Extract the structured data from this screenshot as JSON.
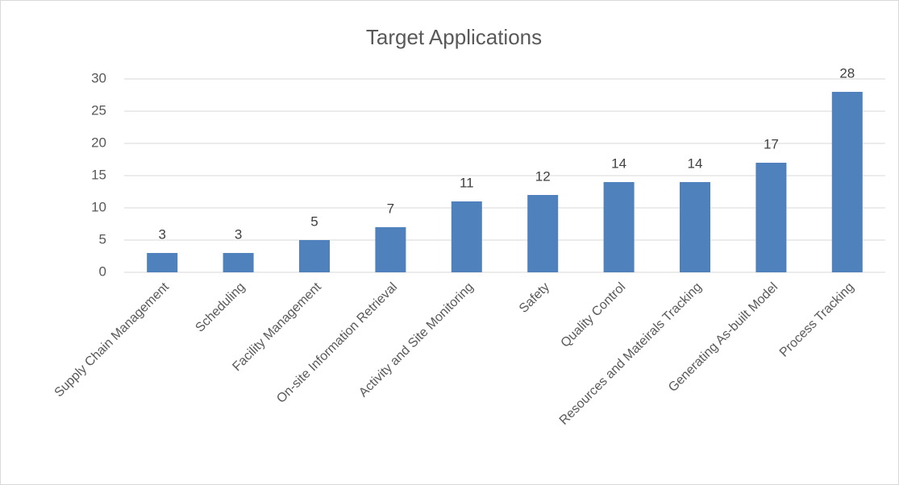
{
  "chart_data": {
    "type": "bar",
    "title": "Target Applications",
    "categories": [
      "Supply Chain Management",
      "Scheduling",
      "Facility Management",
      "On-site Information Retrieval",
      "Activity and Site Monitoring",
      "Safety",
      "Quality Control",
      "Resources and Mateirals Tracking",
      "Generating As-built Model",
      "Process Tracking"
    ],
    "values": [
      3,
      3,
      5,
      7,
      11,
      12,
      14,
      14,
      17,
      28
    ],
    "color": "#4f81bd",
    "ylim": [
      0,
      30
    ],
    "yticks": [
      0,
      5,
      10,
      15,
      20,
      25,
      30
    ],
    "grid": true
  }
}
